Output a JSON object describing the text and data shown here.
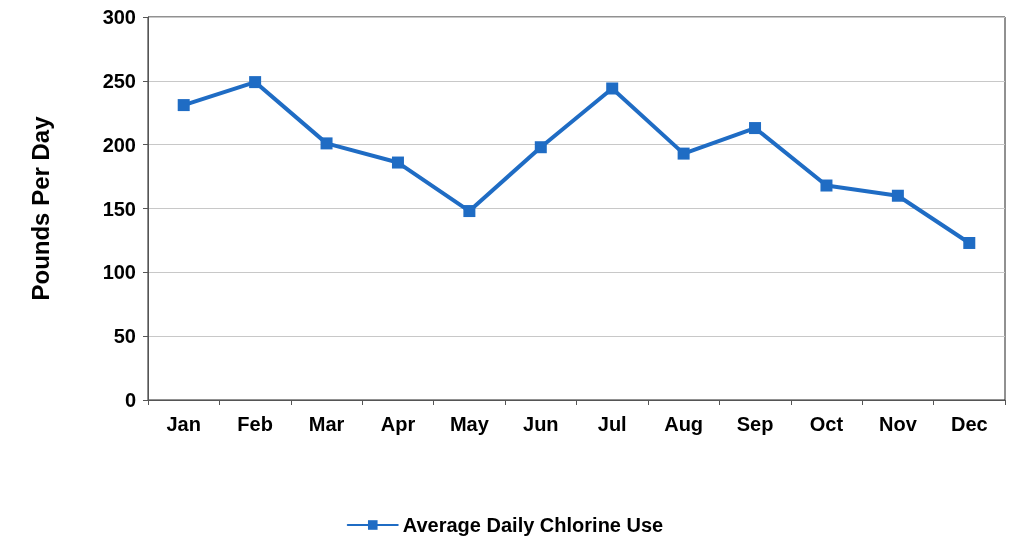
{
  "chart_data": {
    "type": "line",
    "ylabel": "Pounds Per Day",
    "categories": [
      "Jan",
      "Feb",
      "Mar",
      "Apr",
      "May",
      "Jun",
      "Jul",
      "Aug",
      "Sep",
      "Oct",
      "Nov",
      "Dec"
    ],
    "series": [
      {
        "name": "Average Daily Chlorine Use",
        "color": "#1f6cc4",
        "values": [
          231,
          249,
          201,
          186,
          148,
          198,
          244,
          193,
          213,
          168,
          160,
          123
        ]
      }
    ],
    "ylim": [
      0,
      300
    ],
    "yticks": [
      0,
      50,
      100,
      150,
      200,
      250,
      300
    ],
    "grid": "y",
    "legend": "bottom",
    "marker": "square",
    "line_style": "solid"
  }
}
